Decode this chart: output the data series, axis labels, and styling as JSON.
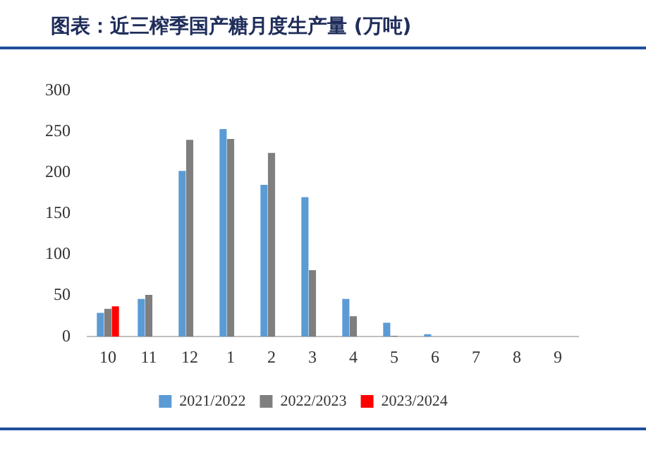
{
  "chart_data": {
    "type": "bar",
    "title": "图表：近三榨季国产糖月度生产量 (万吨)",
    "categories": [
      "10",
      "11",
      "12",
      "1",
      "2",
      "3",
      "4",
      "5",
      "6",
      "7",
      "8",
      "9"
    ],
    "series": [
      {
        "name": "2021/2022",
        "color": "#5b9bd5",
        "values": [
          29,
          46,
          202,
          253,
          185,
          170,
          46,
          17,
          3,
          null,
          null,
          null
        ]
      },
      {
        "name": "2022/2023",
        "color": "#7f7f7f",
        "values": [
          34,
          51,
          240,
          241,
          224,
          81,
          25,
          1,
          null,
          null,
          null,
          null
        ]
      },
      {
        "name": "2023/2024",
        "color": "#ff0000",
        "values": [
          37,
          null,
          null,
          null,
          null,
          null,
          null,
          null,
          null,
          null,
          null,
          null
        ]
      }
    ],
    "ylim": [
      0,
      300
    ],
    "yticks": [
      0,
      50,
      100,
      150,
      200,
      250,
      300
    ],
    "grid": false,
    "legend": "bottom"
  }
}
